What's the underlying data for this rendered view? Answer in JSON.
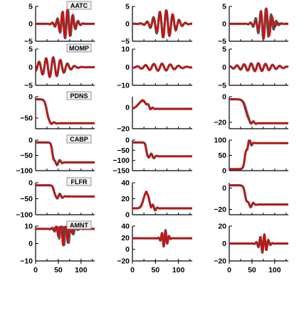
{
  "chart_data": {
    "type": "line",
    "layout": "6x3 grid of small multiples",
    "x_ticks": [
      0,
      50,
      100
    ],
    "xlim": [
      0,
      130
    ],
    "series_colors": {
      "observed": "#555555",
      "synthetic": "#e60000"
    },
    "rows": [
      {
        "station": "AATC",
        "panels": [
          {
            "yticks": [
              5,
              0,
              -5
            ],
            "ylim": [
              -5,
              5
            ]
          },
          {
            "yticks": [
              5,
              0,
              -5
            ],
            "ylim": [
              -5,
              5
            ]
          },
          {
            "yticks": [
              5,
              0,
              -5
            ],
            "ylim": [
              -5,
              5
            ]
          }
        ]
      },
      {
        "station": "MOMP",
        "panels": [
          {
            "yticks": [
              5,
              0,
              -5
            ],
            "ylim": [
              -5,
              5
            ]
          },
          {
            "yticks": [
              10,
              0,
              -10
            ],
            "ylim": [
              -10,
              10
            ]
          },
          {
            "yticks": [
              5,
              0,
              -5
            ],
            "ylim": [
              -5,
              5
            ]
          }
        ]
      },
      {
        "station": "PDNS",
        "panels": [
          {
            "yticks": [
              0,
              -50
            ],
            "ylim": [
              -75,
              0
            ]
          },
          {
            "yticks": [
              0,
              -20
            ],
            "ylim": [
              -20,
              10
            ]
          },
          {
            "yticks": [
              0,
              -20
            ],
            "ylim": [
              -25,
              0
            ]
          }
        ]
      },
      {
        "station": "CABP",
        "panels": [
          {
            "yticks": [
              0,
              -50,
              -100
            ],
            "ylim": [
              -100,
              0
            ]
          },
          {
            "yticks": [
              0,
              -50,
              -100,
              -150
            ],
            "ylim": [
              -150,
              0
            ]
          },
          {
            "yticks": [
              100,
              50,
              0
            ],
            "ylim": [
              0,
              100
            ]
          }
        ]
      },
      {
        "station": "FLFR",
        "panels": [
          {
            "yticks": [
              0,
              -50,
              -100
            ],
            "ylim": [
              -100,
              0
            ]
          },
          {
            "yticks": [
              40,
              20,
              0
            ],
            "ylim": [
              0,
              40
            ]
          },
          {
            "yticks": [
              0,
              -20
            ],
            "ylim": [
              -25,
              5
            ]
          }
        ]
      },
      {
        "station": "AMNT",
        "panels": [
          {
            "yticks": [
              10,
              0,
              -10
            ],
            "ylim": [
              -10,
              10
            ]
          },
          {
            "yticks": [
              40,
              20,
              0,
              -20
            ],
            "ylim": [
              -20,
              40
            ]
          },
          {
            "yticks": [
              20,
              0,
              -20
            ],
            "ylim": [
              -20,
              20
            ]
          }
        ]
      }
    ]
  }
}
